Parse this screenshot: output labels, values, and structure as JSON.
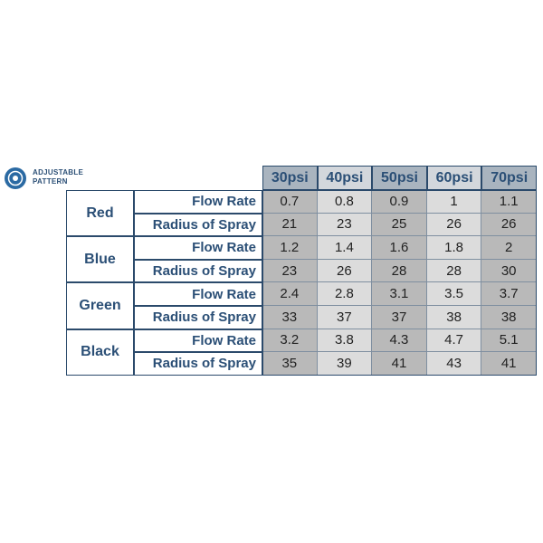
{
  "legend": {
    "lines": [
      "ADJUSTABLE",
      "PATTERN"
    ]
  },
  "table": {
    "header": [
      "30psi",
      "40psi",
      "50psi",
      "60psi",
      "70psi"
    ],
    "groups": [
      {
        "name": "Red",
        "rows": [
          {
            "label": "Flow Rate",
            "values": [
              0.7,
              0.8,
              0.9,
              1,
              1.1
            ]
          },
          {
            "label": "Radius of Spray",
            "values": [
              21,
              23,
              25,
              26,
              26
            ]
          }
        ]
      },
      {
        "name": "Blue",
        "rows": [
          {
            "label": "Flow Rate",
            "values": [
              1.2,
              1.4,
              1.6,
              1.8,
              2
            ]
          },
          {
            "label": "Radius of Spray",
            "values": [
              23,
              26,
              28,
              28,
              30
            ]
          }
        ]
      },
      {
        "name": "Green",
        "rows": [
          {
            "label": "Flow Rate",
            "values": [
              2.4,
              2.8,
              3.1,
              3.5,
              3.7
            ]
          },
          {
            "label": "Radius of Spray",
            "values": [
              33,
              37,
              37,
              38,
              38
            ]
          }
        ]
      },
      {
        "name": "Black",
        "rows": [
          {
            "label": "Flow Rate",
            "values": [
              3.2,
              3.8,
              4.3,
              4.7,
              5.1
            ]
          },
          {
            "label": "Radius of Spray",
            "values": [
              35,
              39,
              41,
              43,
              41
            ]
          }
        ]
      }
    ]
  }
}
